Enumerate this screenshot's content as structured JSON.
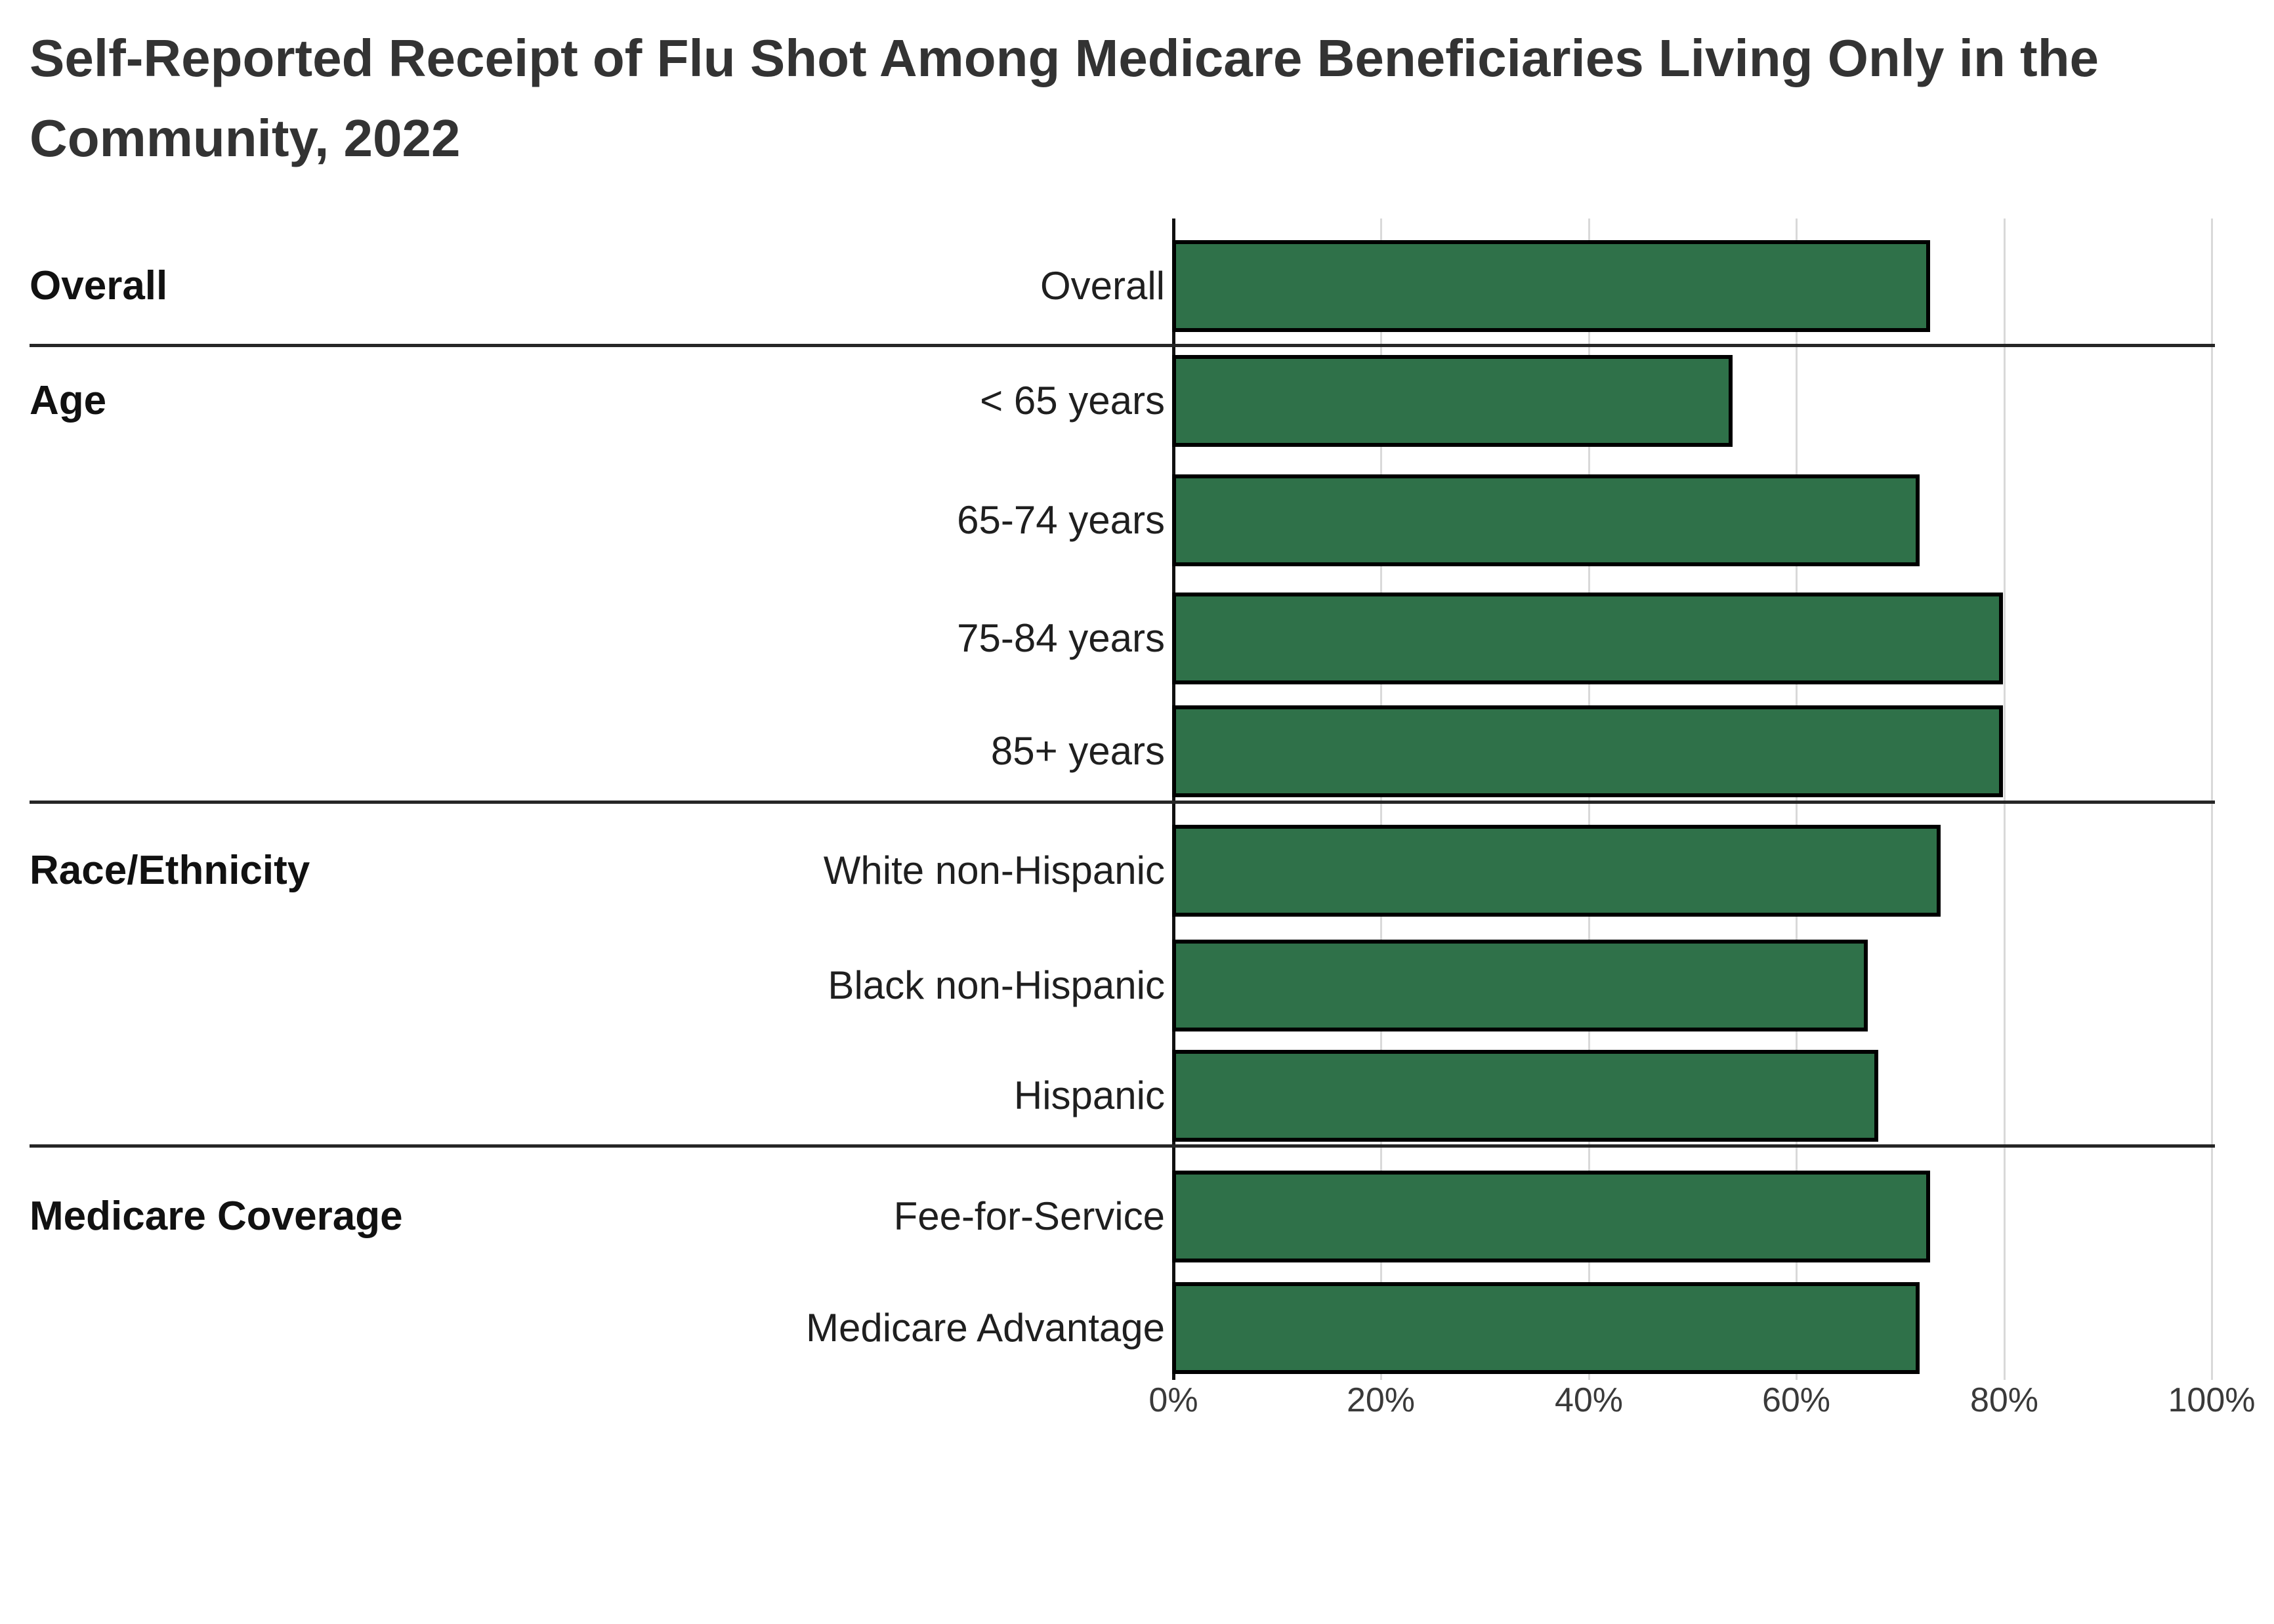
{
  "title_lines": [
    "Self-Reported Receipt of Flu Shot Among Medicare Beneficiaries Living Only in the",
    "Community, 2022"
  ],
  "chart_data": {
    "type": "bar",
    "orientation": "horizontal",
    "title": "Self-Reported Receipt of Flu Shot Among Medicare Beneficiaries Living Only in the Community, 2022",
    "value_unit": "percent",
    "xlim": [
      0,
      100
    ],
    "x_tick_labels": [
      "0%",
      "20%",
      "40%",
      "60%",
      "80%",
      "100%"
    ],
    "grid": true,
    "bar_color": "#2F7149",
    "bar_border_color": "#000000",
    "groups": [
      {
        "label": "Overall",
        "rows": [
          {
            "label": "Overall",
            "value": 73
          }
        ]
      },
      {
        "label": "Age",
        "rows": [
          {
            "label": "< 65 years",
            "value": 54
          },
          {
            "label": "65-74 years",
            "value": 72
          },
          {
            "label": "75-84 years",
            "value": 80
          },
          {
            "label": "85+ years",
            "value": 80
          }
        ]
      },
      {
        "label": "Race/Ethnicity",
        "rows": [
          {
            "label": "White non-Hispanic",
            "value": 74
          },
          {
            "label": "Black non-Hispanic",
            "value": 67
          },
          {
            "label": "Hispanic",
            "value": 68
          }
        ]
      },
      {
        "label": "Medicare Coverage",
        "rows": [
          {
            "label": "Fee-for-Service",
            "value": 73
          },
          {
            "label": "Medicare Advantage",
            "value": 72
          }
        ]
      }
    ]
  }
}
